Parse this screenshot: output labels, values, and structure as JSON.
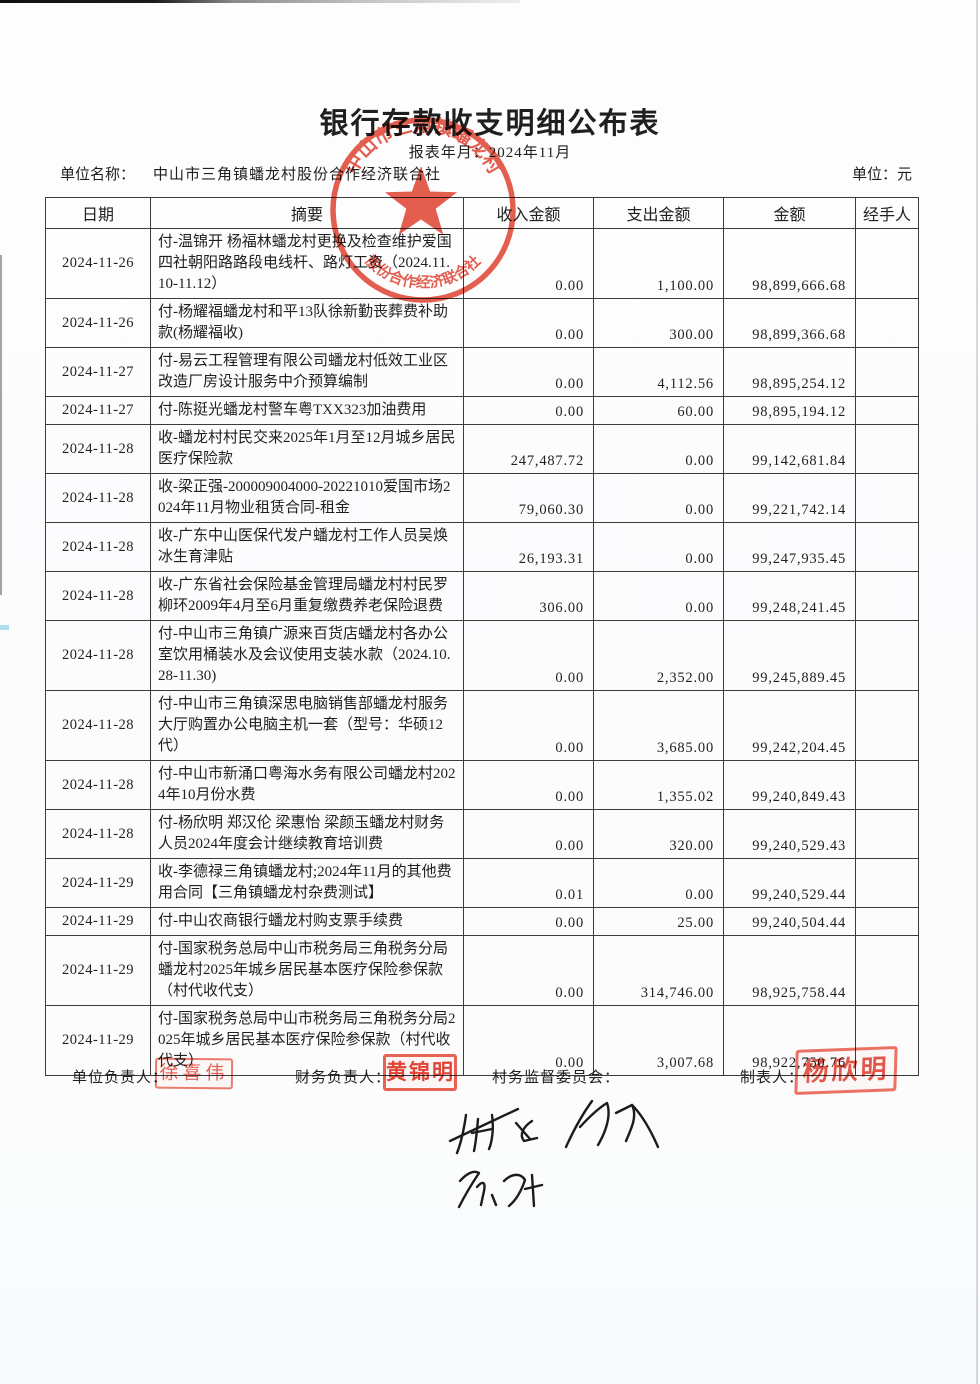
{
  "page": {
    "title": "银行存款收支明细公布表",
    "report_period": "报表年月：2024年11月",
    "unit_name_label": "单位名称：",
    "unit_name": "中山市三角镇蟠龙村股份合作经济联合社",
    "unit_label": "单位：元"
  },
  "table": {
    "headers": [
      "日期",
      "摘要",
      "收入金额",
      "支出金额",
      "金额",
      "经手人"
    ],
    "rows": [
      {
        "date": "2024-11-26",
        "summary": "付-温锦开 杨福林蟠龙村更换及检查维护爱国四社朝阳路路段电线杆、路灯工资（2024.11.10-11.12）",
        "income": "0.00",
        "expense": "1,100.00",
        "balance": "98,899,666.68",
        "handler": ""
      },
      {
        "date": "2024-11-26",
        "summary": "付-杨耀福蟠龙村和平13队徐新勤丧葬费补助款(杨耀福收)",
        "income": "0.00",
        "expense": "300.00",
        "balance": "98,899,366.68",
        "handler": ""
      },
      {
        "date": "2024-11-27",
        "summary": "付-易云工程管理有限公司蟠龙村低效工业区改造厂房设计服务中介预算编制",
        "income": "0.00",
        "expense": "4,112.56",
        "balance": "98,895,254.12",
        "handler": ""
      },
      {
        "date": "2024-11-27",
        "summary": "付-陈挺光蟠龙村警车粤TXX323加油费用",
        "income": "0.00",
        "expense": "60.00",
        "balance": "98,895,194.12",
        "handler": ""
      },
      {
        "date": "2024-11-28",
        "summary": "收-蟠龙村村民交来2025年1月至12月城乡居民医疗保险款",
        "income": "247,487.72",
        "expense": "0.00",
        "balance": "99,142,681.84",
        "handler": ""
      },
      {
        "date": "2024-11-28",
        "summary": "收-梁正强-200009004000-20221010爱国市场2024年11月物业租赁合同-租金",
        "income": "79,060.30",
        "expense": "0.00",
        "balance": "99,221,742.14",
        "handler": ""
      },
      {
        "date": "2024-11-28",
        "summary": "收-广东中山医保代发户蟠龙村工作人员吴焕冰生育津贴",
        "income": "26,193.31",
        "expense": "0.00",
        "balance": "99,247,935.45",
        "handler": ""
      },
      {
        "date": "2024-11-28",
        "summary": "收-广东省社会保险基金管理局蟠龙村村民罗柳环2009年4月至6月重复缴费养老保险退费",
        "income": "306.00",
        "expense": "0.00",
        "balance": "99,248,241.45",
        "handler": ""
      },
      {
        "date": "2024-11-28",
        "summary": "付-中山市三角镇广源来百货店蟠龙村各办公室饮用桶装水及会议使用支装水款（2024.10.28-11.30)",
        "income": "0.00",
        "expense": "2,352.00",
        "balance": "99,245,889.45",
        "handler": ""
      },
      {
        "date": "2024-11-28",
        "summary": "付-中山市三角镇深思电脑销售部蟠龙村服务大厅购置办公电脑主机一套（型号：华硕12代）",
        "income": "0.00",
        "expense": "3,685.00",
        "balance": "99,242,204.45",
        "handler": ""
      },
      {
        "date": "2024-11-28",
        "summary": "付-中山市新涌口粤海水务有限公司蟠龙村2024年10月份水费",
        "income": "0.00",
        "expense": "1,355.02",
        "balance": "99,240,849.43",
        "handler": ""
      },
      {
        "date": "2024-11-28",
        "summary": "付-杨欣明 郑汉伦 梁惠怡 梁颜玉蟠龙村财务人员2024年度会计继续教育培训费",
        "income": "0.00",
        "expense": "320.00",
        "balance": "99,240,529.43",
        "handler": ""
      },
      {
        "date": "2024-11-29",
        "summary": "收-李德禄三角镇蟠龙村;2024年11月的其他费用合同【三角镇蟠龙村杂费测试】",
        "income": "0.01",
        "expense": "0.00",
        "balance": "99,240,529.44",
        "handler": ""
      },
      {
        "date": "2024-11-29",
        "summary": "付-中山农商银行蟠龙村购支票手续费",
        "income": "0.00",
        "expense": "25.00",
        "balance": "99,240,504.44",
        "handler": ""
      },
      {
        "date": "2024-11-29",
        "summary": "付-国家税务总局中山市税务局三角税务分局蟠龙村2025年城乡居民基本医疗保险参保款（村代收代支）",
        "income": "0.00",
        "expense": "314,746.00",
        "balance": "98,925,758.44",
        "handler": ""
      },
      {
        "date": "2024-11-29",
        "summary": "付-国家税务总局中山市税务局三角税务分局2025年城乡居民基本医疗保险参保款（村代收代支）",
        "income": "0.00",
        "expense": "3,007.68",
        "balance": "98,922,750.76",
        "handler": ""
      }
    ]
  },
  "footer": {
    "unit_head_label": "单位负责人：",
    "finance_head_label": "财务负责人：",
    "supervision_committee_label": "村务监督委员会：",
    "preparer_label": "制表人："
  },
  "stamps": {
    "unit_head_name": "徐喜伟",
    "finance_head_name": "黄锦明",
    "preparer_name": "杨欣明",
    "seal_top_text": "中山市三角镇蟠龙村",
    "seal_bottom_text": "股份合作经济联合社",
    "seal_color": "#e2402e"
  }
}
